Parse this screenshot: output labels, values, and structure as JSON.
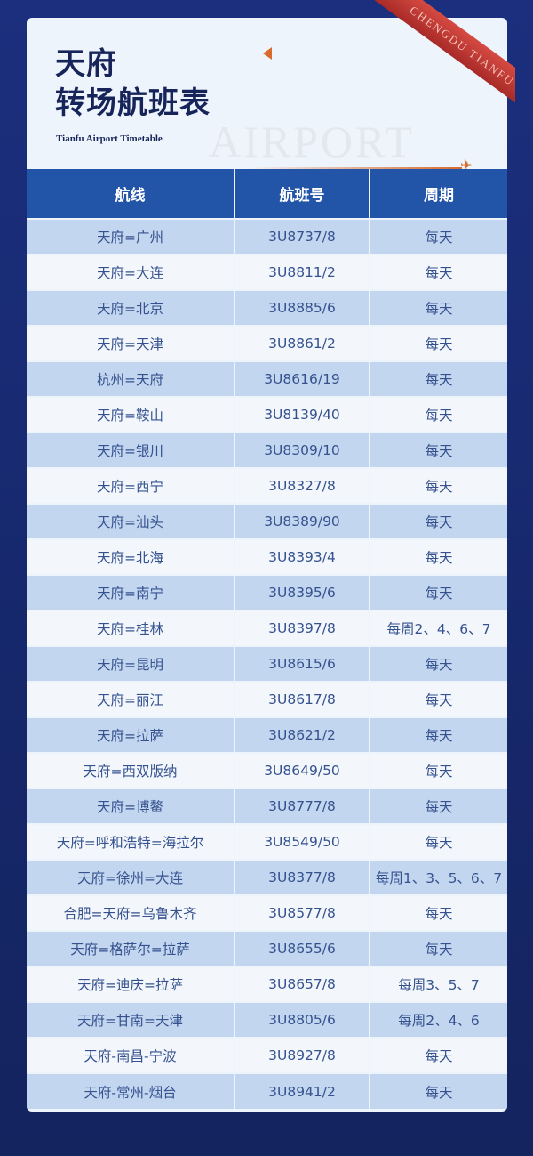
{
  "header": {
    "title_line1": "天府",
    "title_line2": "转场航班表",
    "subtitle": "Tianfu  Airport Timetable",
    "watermark": "AIRPORT",
    "ribbon": "CHENGDU TIANFU"
  },
  "colors": {
    "background": "#1b2f7e",
    "header_row": "#2254a8",
    "row_alt": "#c3d6ef",
    "accent": "#d86a2b",
    "ribbon": "#c23a35"
  },
  "table": {
    "columns": [
      "航线",
      "航班号",
      "周期"
    ],
    "rows": [
      [
        "天府=广州",
        "3U8737/8",
        "每天"
      ],
      [
        "天府=大连",
        "3U8811/2",
        "每天"
      ],
      [
        "天府=北京",
        "3U8885/6",
        "每天"
      ],
      [
        "天府=天津",
        "3U8861/2",
        "每天"
      ],
      [
        "杭州=天府",
        "3U8616/19",
        "每天"
      ],
      [
        "天府=鞍山",
        "3U8139/40",
        "每天"
      ],
      [
        "天府=银川",
        "3U8309/10",
        "每天"
      ],
      [
        "天府=西宁",
        "3U8327/8",
        "每天"
      ],
      [
        "天府=汕头",
        "3U8389/90",
        "每天"
      ],
      [
        "天府=北海",
        "3U8393/4",
        "每天"
      ],
      [
        "天府=南宁",
        "3U8395/6",
        "每天"
      ],
      [
        "天府=桂林",
        "3U8397/8",
        "每周2、4、6、7"
      ],
      [
        "天府=昆明",
        "3U8615/6",
        "每天"
      ],
      [
        "天府=丽江",
        "3U8617/8",
        "每天"
      ],
      [
        "天府=拉萨",
        "3U8621/2",
        "每天"
      ],
      [
        "天府=西双版纳",
        "3U8649/50",
        "每天"
      ],
      [
        "天府=博鳌",
        "3U8777/8",
        "每天"
      ],
      [
        "天府=呼和浩特=海拉尔",
        "3U8549/50",
        "每天"
      ],
      [
        "天府=徐州=大连",
        "3U8377/8",
        "每周1、3、5、6、7"
      ],
      [
        "合肥=天府=乌鲁木齐",
        "3U8577/8",
        "每天"
      ],
      [
        "天府=格萨尔=拉萨",
        "3U8655/6",
        "每天"
      ],
      [
        "天府=迪庆=拉萨",
        "3U8657/8",
        "每周3、5、7"
      ],
      [
        "天府=甘南=天津",
        "3U8805/6",
        "每周2、4、6"
      ],
      [
        "天府-南昌-宁波",
        "3U8927/8",
        "每天"
      ],
      [
        "天府-常州-烟台",
        "3U8941/2",
        "每天"
      ]
    ]
  }
}
